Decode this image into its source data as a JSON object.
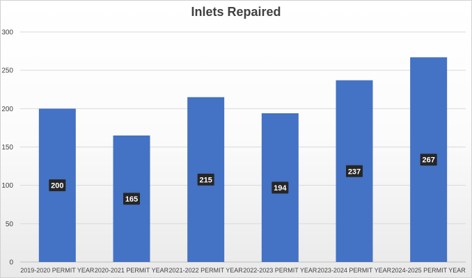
{
  "chart_data": {
    "type": "bar",
    "title": "Inlets Repaired",
    "categories": [
      "2019-2020 PERMIT YEAR",
      "2020-2021 PERMIT YEAR",
      "2021-2022 PERMIT YEAR",
      "2022-2023 PERMIT YEAR",
      "2023-2024 PERMIT YEAR",
      "2024-2025 PERMIT YEAR"
    ],
    "values": [
      200,
      165,
      215,
      194,
      237,
      267
    ],
    "data_labels": [
      "200",
      "165",
      "215",
      "194",
      "237",
      "267"
    ],
    "ylim": [
      0,
      300
    ],
    "yticks": [
      0,
      50,
      100,
      150,
      200,
      250,
      300
    ],
    "ytick_labels": [
      "0",
      "50",
      "100",
      "150",
      "200",
      "250",
      "300"
    ],
    "grid": true,
    "legend": "none",
    "colors": {
      "bar": "#4472c4",
      "grid": "#d9d9d9",
      "label_bg": "#262626"
    }
  }
}
